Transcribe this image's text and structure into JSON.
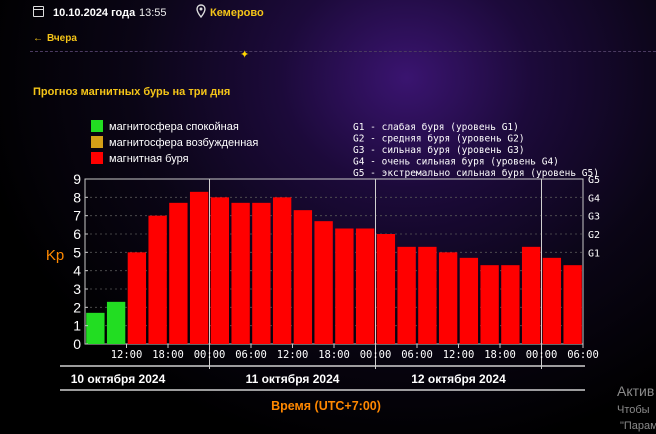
{
  "header": {
    "date": "10.10.2024 года",
    "time": "13:55",
    "city": "Кемерово",
    "back_label": "Вчера"
  },
  "page_title": "Прогноз магнитных бурь на три дня",
  "watermark": {
    "line1": "Актив",
    "line2": "Чтобы",
    "line3": "\"Парам"
  },
  "colors": {
    "calm": "#22dd22",
    "excited": "#d4a017",
    "storm": "#ff0000",
    "accent": "#f5c518",
    "time_label": "#ff8800"
  },
  "chart_data": {
    "type": "bar",
    "ylabel": "Kp",
    "xlabel": "Время (UTC+7:00)",
    "ylim": [
      0,
      9
    ],
    "yticks": [
      "0",
      "1",
      "2",
      "3",
      "4",
      "5",
      "6",
      "7",
      "8",
      "9"
    ],
    "right_ticks": [
      {
        "label": "G1",
        "value": 5
      },
      {
        "label": "G2",
        "value": 6
      },
      {
        "label": "G3",
        "value": 7
      },
      {
        "label": "G4",
        "value": 8
      },
      {
        "label": "G5",
        "value": 9
      }
    ],
    "legend": [
      {
        "label": "магнитосфера спокойная",
        "color": "#22dd22"
      },
      {
        "label": "магнитосфера возбужденная",
        "color": "#d4a017"
      },
      {
        "label": "магнитная буря",
        "color": "#ff0000"
      }
    ],
    "g_legend": [
      "G1 - слабая буря (уровень G1)",
      "G2 - средняя буря (уровень G2)",
      "G3 - сильная буря (уровень G3)",
      "G4 - очень сильная буря (уровень G4)",
      "G5 - экстремально сильная буря (уровень G5)"
    ],
    "time_ticks": [
      {
        "label": "12:00",
        "index": 2
      },
      {
        "label": "18:00",
        "index": 4
      },
      {
        "label": "00:00",
        "index": 6
      },
      {
        "label": "06:00",
        "index": 8
      },
      {
        "label": "12:00",
        "index": 10
      },
      {
        "label": "18:00",
        "index": 12
      },
      {
        "label": "00:00",
        "index": 14
      },
      {
        "label": "06:00",
        "index": 16
      },
      {
        "label": "12:00",
        "index": 18
      },
      {
        "label": "18:00",
        "index": 20
      },
      {
        "label": "00:00",
        "index": 22
      },
      {
        "label": "06:00",
        "index": 24
      }
    ],
    "day_boundaries": [
      6,
      14,
      22
    ],
    "days": [
      {
        "label": "10 октября 2024",
        "start": 0,
        "end": 6
      },
      {
        "label": "11 октября 2024",
        "start": 6,
        "end": 14
      },
      {
        "label": "12 октября 2024",
        "start": 14,
        "end": 22
      }
    ],
    "values": [
      1.7,
      2.3,
      5.0,
      7.0,
      7.7,
      8.3,
      8.0,
      7.7,
      7.7,
      8.0,
      7.3,
      6.7,
      6.3,
      6.3,
      6.0,
      5.3,
      5.3,
      5.0,
      4.7,
      4.3,
      4.3,
      5.3,
      4.7,
      4.3
    ],
    "levels": [
      "calm",
      "calm",
      "storm",
      "storm",
      "storm",
      "storm",
      "storm",
      "storm",
      "storm",
      "storm",
      "storm",
      "storm",
      "storm",
      "storm",
      "storm",
      "storm",
      "storm",
      "storm",
      "storm",
      "storm",
      "storm",
      "storm",
      "storm",
      "storm"
    ]
  }
}
